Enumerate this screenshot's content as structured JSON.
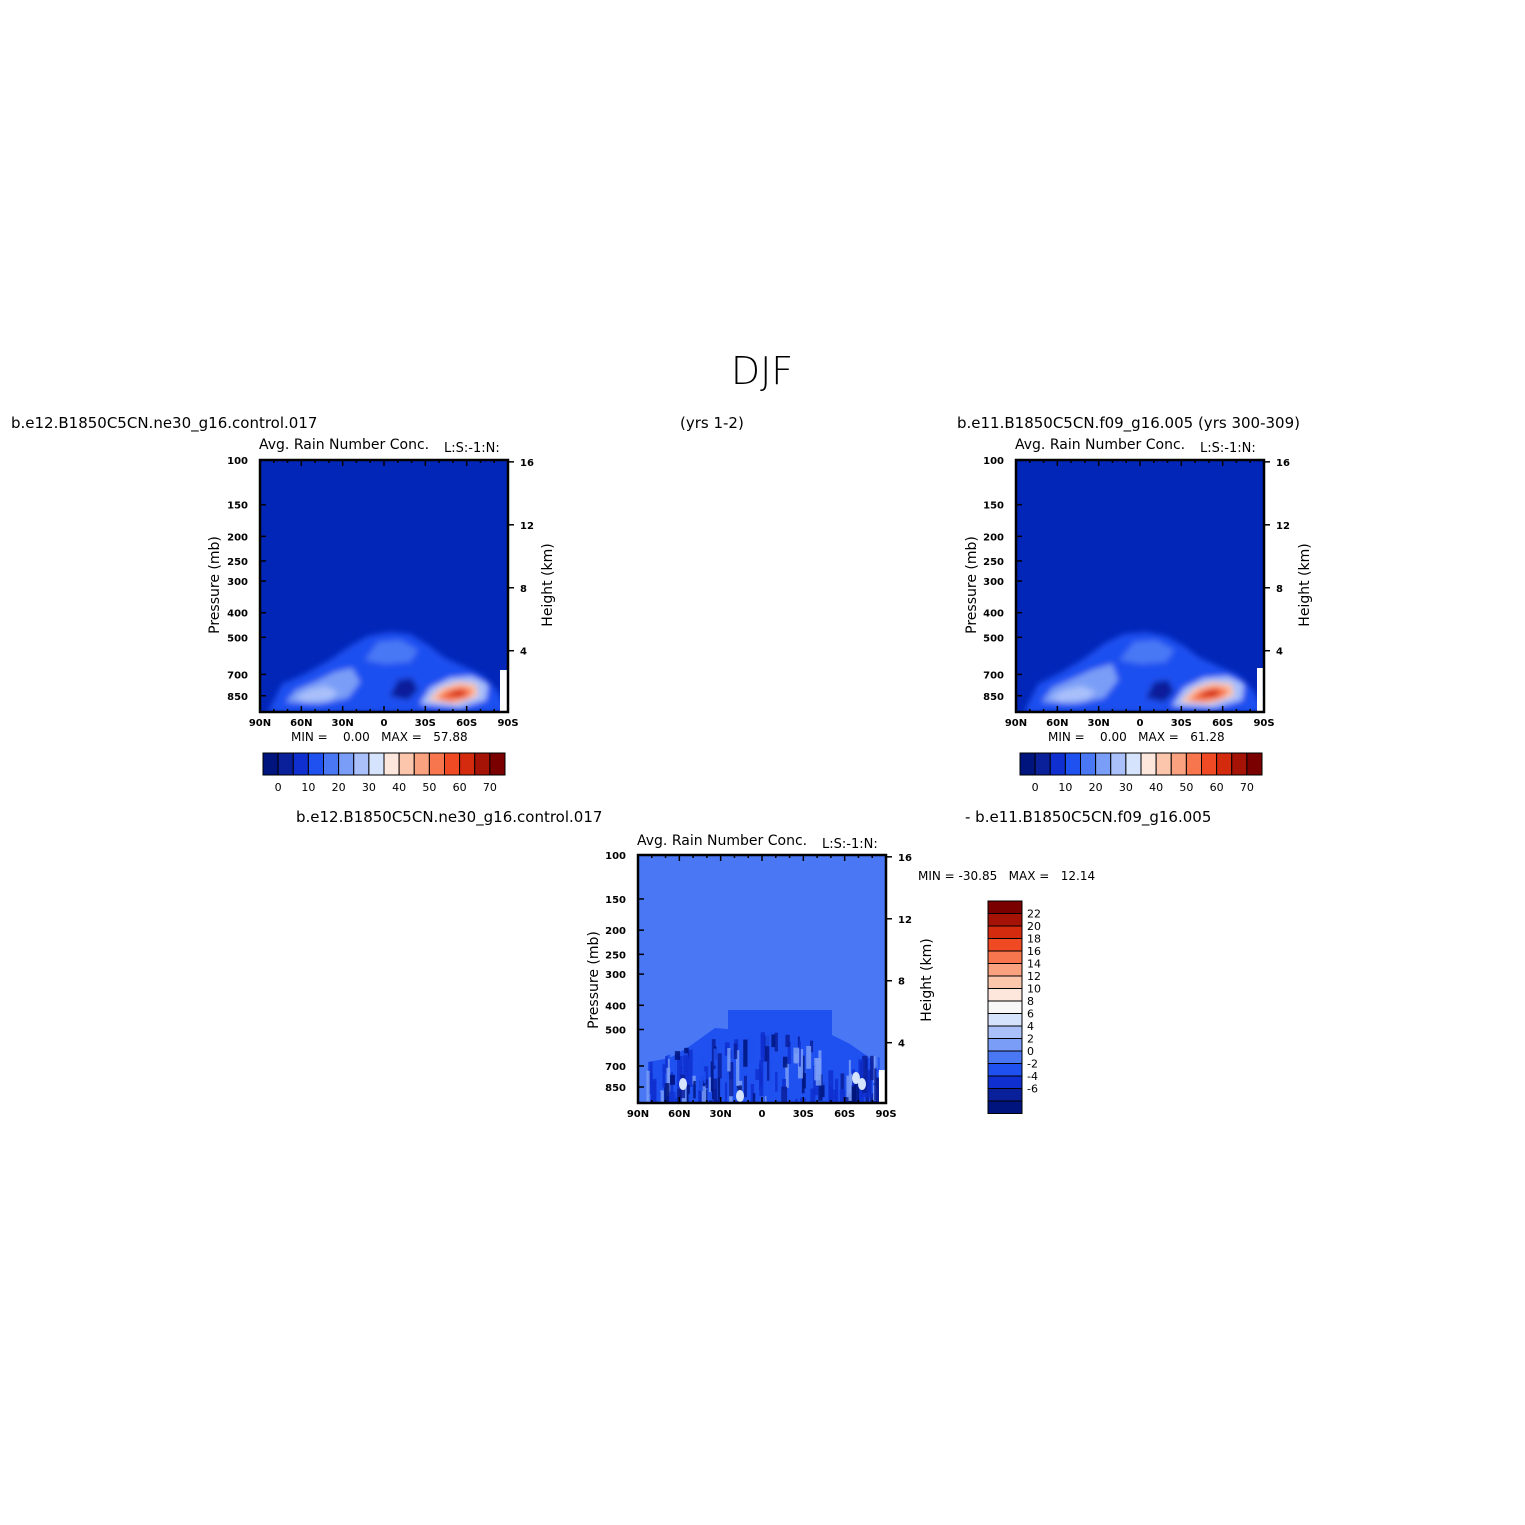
{
  "figure": {
    "title": "DJF"
  },
  "panels": [
    {
      "id": "p1",
      "case_label": "b.e12.B1850C5CN.ne30_g16.control.017",
      "years_label": "(yrs 1-2)",
      "subtitle": "Avg. Rain Number Conc.",
      "level_label": "L:S:-1:N:",
      "ylabel": "Pressure (mb)",
      "y2label": "Height (km)",
      "x_ticks": [
        "90N",
        "60N",
        "30N",
        "0",
        "30S",
        "60S",
        "90S"
      ],
      "y_ticks": [
        "100",
        "150",
        "200",
        "250",
        "300",
        "400",
        "500",
        "700",
        "850"
      ],
      "y2_ticks": [
        "16",
        "12",
        "8",
        "4"
      ],
      "stats": "MIN =    0.00   MAX =   57.88",
      "colorbar_labels": [
        "0",
        "10",
        "20",
        "30",
        "40",
        "50",
        "60",
        "70"
      ],
      "max": 57.88
    },
    {
      "id": "p2",
      "case_label": "b.e11.B1850C5CN.f09_g16.005 (yrs 300-309)",
      "subtitle": "Avg. Rain Number Conc.",
      "level_label": "L:S:-1:N:",
      "ylabel": "Pressure (mb)",
      "y2label": "Height (km)",
      "x_ticks": [
        "90N",
        "60N",
        "30N",
        "0",
        "30S",
        "60S",
        "90S"
      ],
      "y_ticks": [
        "100",
        "150",
        "200",
        "250",
        "300",
        "400",
        "500",
        "700",
        "850"
      ],
      "y2_ticks": [
        "16",
        "12",
        "8",
        "4"
      ],
      "stats": "MIN =    0.00   MAX =   61.28",
      "colorbar_labels": [
        "0",
        "10",
        "20",
        "30",
        "40",
        "50",
        "60",
        "70"
      ],
      "max": 61.28
    },
    {
      "id": "p3",
      "case_label": "b.e12.B1850C5CN.ne30_g16.control.017",
      "case_label_b": "- b.e11.B1850C5CN.f09_g16.005",
      "subtitle": "Avg. Rain Number Conc.",
      "level_label": "L:S:-1:N:",
      "ylabel": "Pressure (mb)",
      "y2label": "Height (km)",
      "x_ticks": [
        "90N",
        "60N",
        "30N",
        "0",
        "30S",
        "60S",
        "90S"
      ],
      "y_ticks": [
        "100",
        "150",
        "200",
        "250",
        "300",
        "400",
        "500",
        "700",
        "850"
      ],
      "y2_ticks": [
        "16",
        "12",
        "8",
        "4"
      ],
      "stats": "MIN = -30.85   MAX =   12.14",
      "colorbar_labels": [
        "22",
        "20",
        "18",
        "16",
        "14",
        "12",
        "10",
        "8",
        "6",
        "4",
        "2",
        "0",
        "-2",
        "-4",
        "-6"
      ]
    }
  ],
  "colors": {
    "abs_scale": [
      "#00147d",
      "#0a1f9a",
      "#0f2fd0",
      "#1f50f0",
      "#4a78f5",
      "#7a9ef7",
      "#a9c0fa",
      "#d6e3fd",
      "#fde6dc",
      "#fcc6ac",
      "#faa27f",
      "#f7764e",
      "#f04a25",
      "#d42a0e",
      "#a51206",
      "#7a0000"
    ],
    "diff_scale": [
      "#00147d",
      "#0a1f9a",
      "#0f2fd0",
      "#1f50f0",
      "#4a78f5",
      "#7a9ef7",
      "#a9c0fa",
      "#d6e3fd",
      "#f7f7f7",
      "#fde6dc",
      "#fcc6ac",
      "#faa27f",
      "#f7764e",
      "#f04a25",
      "#d42a0e",
      "#a51206",
      "#7a0000"
    ],
    "abs_background": "#0226b8",
    "diff_background": "#4a78f5"
  },
  "chart_data": [
    {
      "type": "heatmap",
      "title": "Avg. Rain Number Conc.",
      "xlabel": "",
      "ylabel": "Pressure (mb)",
      "y2label": "Height (km)",
      "x": [
        "90N",
        "60N",
        "30N",
        "0",
        "30S",
        "60S",
        "90S"
      ],
      "y": [
        100,
        150,
        200,
        250,
        300,
        400,
        500,
        700,
        850
      ],
      "y2": [
        16,
        12,
        8,
        4
      ],
      "min": 0.0,
      "max": 57.88,
      "levels": [
        0,
        5,
        10,
        15,
        20,
        25,
        30,
        35,
        40,
        45,
        50,
        55,
        60,
        65,
        70
      ]
    },
    {
      "type": "heatmap",
      "title": "Avg. Rain Number Conc.",
      "xlabel": "",
      "ylabel": "Pressure (mb)",
      "y2label": "Height (km)",
      "x": [
        "90N",
        "60N",
        "30N",
        "0",
        "30S",
        "60S",
        "90S"
      ],
      "y": [
        100,
        150,
        200,
        250,
        300,
        400,
        500,
        700,
        850
      ],
      "y2": [
        16,
        12,
        8,
        4
      ],
      "min": 0.0,
      "max": 61.28,
      "levels": [
        0,
        5,
        10,
        15,
        20,
        25,
        30,
        35,
        40,
        45,
        50,
        55,
        60,
        65,
        70
      ]
    },
    {
      "type": "heatmap",
      "title": "Avg. Rain Number Conc.",
      "xlabel": "",
      "ylabel": "Pressure (mb)",
      "y2label": "Height (km)",
      "x": [
        "90N",
        "60N",
        "30N",
        "0",
        "30S",
        "60S",
        "90S"
      ],
      "y": [
        100,
        150,
        200,
        250,
        300,
        400,
        500,
        700,
        850
      ],
      "y2": [
        16,
        12,
        8,
        4
      ],
      "min": -30.85,
      "max": 12.14,
      "levels": [
        -6,
        -4,
        -2,
        0,
        2,
        4,
        6,
        8,
        10,
        12,
        14,
        16,
        18,
        20,
        22
      ]
    }
  ]
}
